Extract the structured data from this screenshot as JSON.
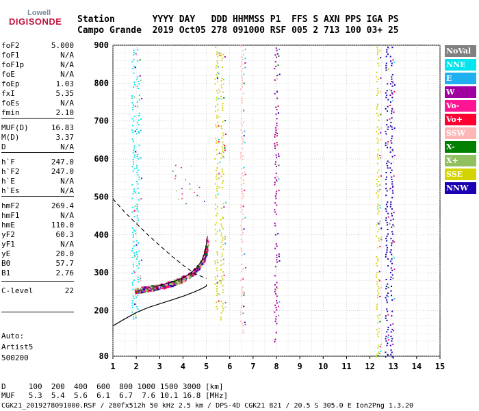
{
  "logo": {
    "line1": "Lowell",
    "line2": "DIGISONDE"
  },
  "header": {
    "line1": "Station       YYYY DAY   DDD HHMMSS P1  FFS S AXN PPS IGA PS",
    "line2": "Campo Grande  2019 Oct05 278 091000 RSF 005 2 713 100 03+ 25"
  },
  "params": [
    {
      "k": "foF2",
      "v": "5.000"
    },
    {
      "k": "foF1",
      "v": "N/A"
    },
    {
      "k": "foF1p",
      "v": "N/A"
    },
    {
      "k": "foE",
      "v": "N/A"
    },
    {
      "k": "foEp",
      "v": "1.03"
    },
    {
      "k": "fxI",
      "v": "5.35"
    },
    {
      "k": "foEs",
      "v": "N/A"
    },
    {
      "k": "fmin",
      "v": "2.10"
    },
    {
      "k": "MUF(D)",
      "v": "16.83"
    },
    {
      "k": "M(D)",
      "v": "3.37"
    },
    {
      "k": "D",
      "v": "N/A"
    },
    {
      "k": "h`F",
      "v": "247.0"
    },
    {
      "k": "h`F2",
      "v": "247.0"
    },
    {
      "k": "h`E",
      "v": "N/A"
    },
    {
      "k": "h`Es",
      "v": "N/A"
    },
    {
      "k": "hmF2",
      "v": "269.4"
    },
    {
      "k": "hmF1",
      "v": "N/A"
    },
    {
      "k": "hmE",
      "v": "110.0"
    },
    {
      "k": "yF2",
      "v": "60.3"
    },
    {
      "k": "yF1",
      "v": "N/A"
    },
    {
      "k": "yE",
      "v": "20.0"
    },
    {
      "k": "B0",
      "v": "57.7"
    },
    {
      "k": "B1",
      "v": "2.76"
    },
    {
      "k": "C-level",
      "v": "22"
    }
  ],
  "auto": {
    "line1": "Auto:",
    "line2": "Artist5",
    "line3": "500200"
  },
  "legend": [
    {
      "label": "NoVal",
      "color": "#808080"
    },
    {
      "label": "NNE",
      "color": "#00e5ee"
    },
    {
      "label": "E",
      "color": "#20b0f0"
    },
    {
      "label": "W",
      "color": "#a000a0"
    },
    {
      "label": "Vo-",
      "color": "#ff1493"
    },
    {
      "label": "Vo+",
      "color": "#ff0033"
    },
    {
      "label": "SSW",
      "color": "#ffb6b6"
    },
    {
      "label": "X-",
      "color": "#008000"
    },
    {
      "label": "X+",
      "color": "#90c060"
    },
    {
      "label": "SSE",
      "color": "#d4d400"
    },
    {
      "label": "NNW",
      "color": "#1a00b0"
    }
  ],
  "footer": {
    "d_row": "D     100  200  400  600  800 1000 1500 3000 [km]",
    "muf_row": "MUF   5.3  5.4  5.6  6.1  6.7  7.6 10.1 16.8 [MHz]",
    "file_row": "CGK21_2019278091000.RSF / 280fx512h 50 kHz 2.5 km / DPS-4D CGK21 821 / 20.5 S 305.0 E Ion2Png 1.3.20"
  },
  "chart_data": {
    "type": "scatter",
    "title": "",
    "xlabel": "",
    "ylabel": "",
    "xlim": [
      1,
      15
    ],
    "ylim": [
      80,
      900
    ],
    "x_ticks": [
      "1",
      "2",
      "3",
      "4",
      "5",
      "6",
      "7",
      "8",
      "9",
      "10",
      "11",
      "12",
      "13",
      "14",
      "15"
    ],
    "y_ticks": [
      "80",
      "200",
      "300",
      "400",
      "500",
      "600",
      "700",
      "800",
      "900"
    ],
    "grid": true,
    "legend_position": "right",
    "trace_Fregion": {
      "x": [
        1.9,
        2.2,
        2.5,
        2.8,
        3.1,
        3.4,
        3.7,
        4.0,
        4.3,
        4.6,
        4.8,
        4.95,
        5.05
      ],
      "y": [
        250,
        252,
        255,
        258,
        262,
        267,
        273,
        281,
        292,
        308,
        325,
        350,
        390
      ]
    },
    "profile_solid": {
      "x": [
        1.0,
        1.5,
        2.0,
        2.5,
        3.0,
        3.5,
        4.0,
        4.5,
        4.8,
        5.0,
        5.0
      ],
      "y": [
        160,
        178,
        195,
        208,
        218,
        228,
        238,
        250,
        258,
        265,
        269
      ]
    },
    "profile_dashed": {
      "x": [
        1.0,
        1.5,
        2.0,
        2.5,
        3.0,
        3.5,
        4.0,
        4.5,
        5.0
      ],
      "y": [
        495,
        460,
        430,
        400,
        372,
        345,
        320,
        298,
        285
      ]
    },
    "vertical_traces": [
      {
        "x": 1.85,
        "ymin": 180,
        "ymax": 900,
        "series": "NNE"
      },
      {
        "x": 2.05,
        "ymin": 200,
        "ymax": 890,
        "series": "NNE"
      },
      {
        "x": 5.4,
        "ymin": 200,
        "ymax": 900,
        "series": "SSE"
      },
      {
        "x": 5.65,
        "ymin": 160,
        "ymax": 900,
        "series": "SSE"
      },
      {
        "x": 6.5,
        "ymin": 120,
        "ymax": 900,
        "series": "SSW"
      },
      {
        "x": 7.95,
        "ymin": 120,
        "ymax": 900,
        "series": "W"
      },
      {
        "x": 12.3,
        "ymin": 80,
        "ymax": 900,
        "series": "SSE"
      },
      {
        "x": 12.7,
        "ymin": 80,
        "ymax": 900,
        "series": "NNW"
      },
      {
        "x": 12.9,
        "ymin": 80,
        "ymax": 900,
        "series": "NNW"
      }
    ]
  }
}
